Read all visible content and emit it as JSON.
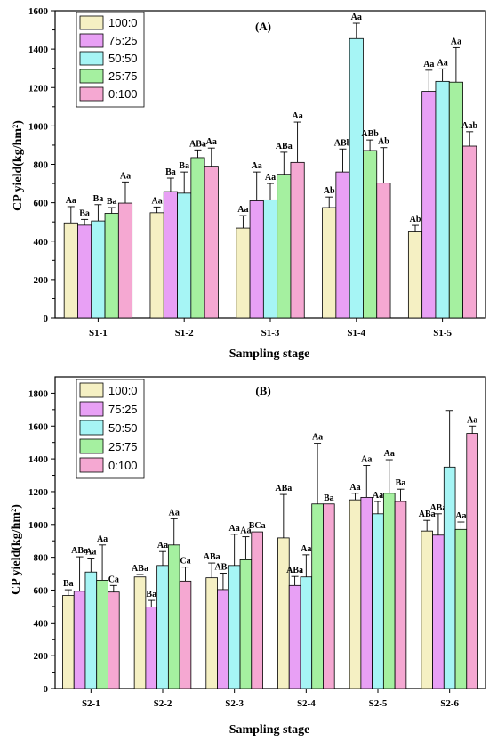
{
  "colors": {
    "100:0": "#f5f0c3",
    "75:25": "#e8a0f5",
    "50:50": "#a6f5f5",
    "25:75": "#a5f0a0",
    "0:100": "#f5a8d2"
  },
  "chart_data": [
    {
      "type": "bar",
      "title": "(A)",
      "xlabel": "Sampling stage",
      "ylabel": "CP yield(kg/hm²)",
      "ylim": [
        0,
        1600
      ],
      "yticks": [
        0,
        200,
        400,
        600,
        800,
        1000,
        1200,
        1400,
        1600
      ],
      "legend_position": "top-left",
      "categories": [
        "S1-1",
        "S1-2",
        "S1-3",
        "S1-4",
        "S1-5"
      ],
      "series": [
        {
          "name": "100:0",
          "values": [
            495,
            548,
            468,
            575,
            452
          ],
          "errors": [
            85,
            30,
            65,
            55,
            30
          ],
          "labels": [
            "Aa",
            "Aa",
            "Aa",
            "Ab",
            "Ab"
          ]
        },
        {
          "name": "75:25",
          "values": [
            483,
            658,
            610,
            760,
            1180
          ],
          "errors": [
            30,
            70,
            150,
            120,
            110
          ],
          "labels": [
            "Ba",
            "Ba",
            "Aa",
            "ABb",
            "Aa"
          ]
        },
        {
          "name": "50:50",
          "values": [
            505,
            650,
            615,
            1455,
            1232
          ],
          "errors": [
            85,
            110,
            85,
            80,
            65
          ],
          "labels": [
            "Ba",
            "Ba",
            "Aa",
            "Aa",
            "Aa"
          ]
        },
        {
          "name": "25:75",
          "values": [
            545,
            835,
            748,
            872,
            1228
          ],
          "errors": [
            30,
            40,
            115,
            55,
            180
          ],
          "labels": [
            "Ba",
            "ABa",
            "ABa",
            "ABb",
            "Aa"
          ]
        },
        {
          "name": "0:100",
          "values": [
            598,
            790,
            810,
            702,
            895
          ],
          "errors": [
            110,
            95,
            210,
            185,
            75
          ],
          "labels": [
            "Aa",
            "Aa",
            "Aa",
            "Ab",
            "Aab"
          ]
        }
      ]
    },
    {
      "type": "bar",
      "title": "(B)",
      "xlabel": "Sampling stage",
      "ylabel": "CP yield(kg/hm²)",
      "ylim": [
        0,
        1900
      ],
      "yticks": [
        0,
        200,
        400,
        600,
        800,
        1000,
        1200,
        1400,
        1600,
        1800
      ],
      "legend_position": "top-left",
      "categories": [
        "S2-1",
        "S2-2",
        "S2-3",
        "S2-4",
        "S2-5",
        "S2-6"
      ],
      "series": [
        {
          "name": "100:0",
          "values": [
            567,
            680,
            675,
            918,
            1150,
            960
          ],
          "errors": [
            35,
            15,
            90,
            265,
            40,
            65
          ],
          "labels": [
            "Ba",
            "ABa",
            "ABa",
            "ABa",
            "Aa",
            "ABa"
          ]
        },
        {
          "name": "75:25",
          "values": [
            593,
            497,
            603,
            628,
            1165,
            935
          ],
          "errors": [
            210,
            40,
            100,
            55,
            195,
            130
          ],
          "labels": [
            "ABa",
            "Ba",
            "ABa",
            "ABa",
            "Aa",
            "ABa"
          ]
        },
        {
          "name": "50:50",
          "values": [
            710,
            750,
            750,
            680,
            1065,
            1350
          ],
          "errors": [
            85,
            85,
            190,
            135,
            75,
            345
          ],
          "labels": [
            "Aa",
            "Aa",
            "Aa",
            "Aa",
            "Aa",
            ""
          ]
        },
        {
          "name": "25:75",
          "values": [
            660,
            875,
            785,
            1125,
            1190,
            970
          ],
          "errors": [
            215,
            160,
            140,
            370,
            205,
            45
          ],
          "labels": [
            "Aa",
            "Aa",
            "Aa",
            "Aa",
            "Aa",
            "Aa"
          ]
        },
        {
          "name": "0:100",
          "values": [
            588,
            655,
            955,
            1125,
            1140,
            1555
          ],
          "errors": [
            40,
            85,
            0,
            0,
            75,
            45
          ],
          "labels": [
            "Ca",
            "Ca",
            "BCa",
            "Ba",
            "Ba",
            "Aa"
          ]
        }
      ]
    }
  ]
}
